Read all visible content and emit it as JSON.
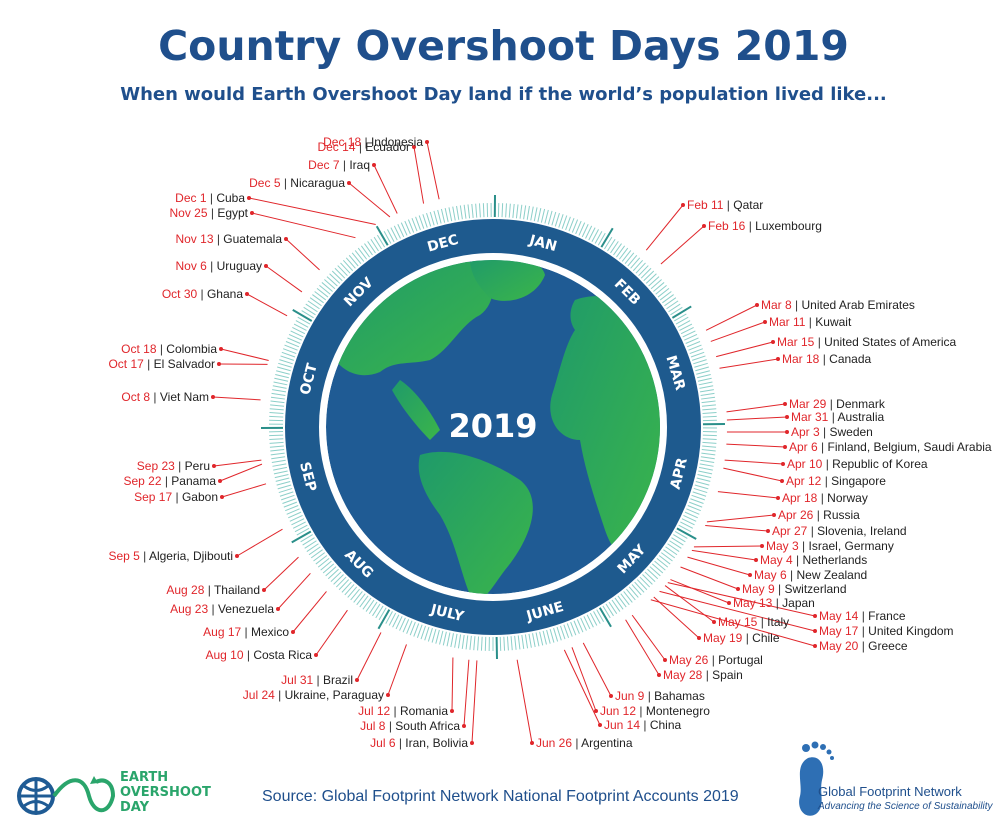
{
  "header": {
    "title": "Country Overshoot Days 2019",
    "subtitle": "When would Earth Overshoot Day land if the world’s population lived like..."
  },
  "center_year": "2019",
  "months": [
    "JAN",
    "FEB",
    "MAR",
    "APR",
    "MAY",
    "JUNE",
    "JULY",
    "AUG",
    "SEP",
    "OCT",
    "NOV",
    "DEC"
  ],
  "countries": [
    {
      "date": "Feb 11",
      "name": "Qatar",
      "day": 42
    },
    {
      "date": "Feb 16",
      "name": "Luxembourg",
      "day": 47
    },
    {
      "date": "Mar 8",
      "name": "United Arab Emirates",
      "day": 67
    },
    {
      "date": "Mar 11",
      "name": "Kuwait",
      "day": 70
    },
    {
      "date": "Mar 15",
      "name": "United States of America",
      "day": 74
    },
    {
      "date": "Mar 18",
      "name": "Canada",
      "day": 77
    },
    {
      "date": "Mar 29",
      "name": "Denmark",
      "day": 88
    },
    {
      "date": "Mar 31",
      "name": "Australia",
      "day": 90
    },
    {
      "date": "Apr 3",
      "name": "Sweden",
      "day": 93
    },
    {
      "date": "Apr 6",
      "name": "Finland, Belgium, Saudi Arabia",
      "day": 96
    },
    {
      "date": "Apr 10",
      "name": "Republic of Korea",
      "day": 100
    },
    {
      "date": "Apr 12",
      "name": "Singapore",
      "day": 102
    },
    {
      "date": "Apr 18",
      "name": "Norway",
      "day": 108
    },
    {
      "date": "Apr 26",
      "name": "Russia",
      "day": 116
    },
    {
      "date": "Apr 27",
      "name": "Slovenia, Ireland",
      "day": 117
    },
    {
      "date": "May 3",
      "name": "Israel, Germany",
      "day": 123
    },
    {
      "date": "May 4",
      "name": "Netherlands",
      "day": 124
    },
    {
      "date": "May 6",
      "name": "New Zealand",
      "day": 126
    },
    {
      "date": "May 9",
      "name": "Switzerland",
      "day": 129
    },
    {
      "date": "May 13",
      "name": "Japan",
      "day": 133
    },
    {
      "date": "May 14",
      "name": "France",
      "day": 134
    },
    {
      "date": "May 15",
      "name": "Italy",
      "day": 135
    },
    {
      "date": "May 17",
      "name": "United Kingdom",
      "day": 137
    },
    {
      "date": "May 19",
      "name": "Chile",
      "day": 139
    },
    {
      "date": "May 20",
      "name": "Greece",
      "day": 140
    },
    {
      "date": "May 26",
      "name": "Portugal",
      "day": 146
    },
    {
      "date": "May 28",
      "name": "Spain",
      "day": 148
    },
    {
      "date": "Jun 9",
      "name": "Bahamas",
      "day": 160
    },
    {
      "date": "Jun 12",
      "name": "Montenegro",
      "day": 163
    },
    {
      "date": "Jun 14",
      "name": "China",
      "day": 165
    },
    {
      "date": "Jun 26",
      "name": "Argentina",
      "day": 177
    },
    {
      "date": "Jul 6",
      "name": "Iran, Bolivia",
      "day": 187
    },
    {
      "date": "Jul 8",
      "name": "South Africa",
      "day": 189
    },
    {
      "date": "Jul 12",
      "name": "Romania",
      "day": 193
    },
    {
      "date": "Jul 24",
      "name": "Ukraine, Paraguay",
      "day": 205
    },
    {
      "date": "Jul 31",
      "name": "Brazil",
      "day": 212
    },
    {
      "date": "Aug 10",
      "name": "Costa Rica",
      "day": 222
    },
    {
      "date": "Aug 17",
      "name": "Mexico",
      "day": 229
    },
    {
      "date": "Aug 23",
      "name": "Venezuela",
      "day": 235
    },
    {
      "date": "Aug 28",
      "name": "Thailand",
      "day": 240
    },
    {
      "date": "Sep  5",
      "name": "Algeria, Djibouti",
      "day": 248
    },
    {
      "date": "Sep 17",
      "name": "Gabon",
      "day": 260
    },
    {
      "date": "Sep 22",
      "name": "Panama",
      "day": 265
    },
    {
      "date": "Sep 23",
      "name": "Peru",
      "day": 266
    },
    {
      "date": "Oct 8",
      "name": "Viet Nam",
      "day": 281
    },
    {
      "date": "Oct 17",
      "name": "El Salvador",
      "day": 290
    },
    {
      "date": "Oct 18",
      "name": "Colombia",
      "day": 291
    },
    {
      "date": "Oct 30",
      "name": "Ghana",
      "day": 303
    },
    {
      "date": "Nov 6",
      "name": "Uruguay",
      "day": 310
    },
    {
      "date": "Nov 13",
      "name": "Guatemala",
      "day": 317
    },
    {
      "date": "Nov 25",
      "name": "Egypt",
      "day": 329
    },
    {
      "date": "Dec 1",
      "name": "Cuba",
      "day": 335
    },
    {
      "date": "Dec 5",
      "name": "Nicaragua",
      "day": 339
    },
    {
      "date": "Dec 7",
      "name": "Iraq",
      "day": 341
    },
    {
      "date": "Dec 14",
      "name": "Ecuador",
      "day": 348
    },
    {
      "date": "Dec 18",
      "name": "Indonesia",
      "day": 352
    }
  ],
  "footer": {
    "source": "Source: Global Footprint Network National Footprint Accounts 2019",
    "eod_logo_lines": [
      "EARTH",
      "OVERSHOOT",
      "DAY"
    ],
    "gfn_name": "Global Footprint Network",
    "gfn_tagline": "Advancing the Science of Sustainability"
  },
  "colors": {
    "title": "#1f4f8c",
    "date": "#e0262b",
    "ring_dark": "#1e5a8e",
    "tick": "#7cc4c1",
    "ocean": "#1f5b94",
    "land": "#2aa56b"
  }
}
